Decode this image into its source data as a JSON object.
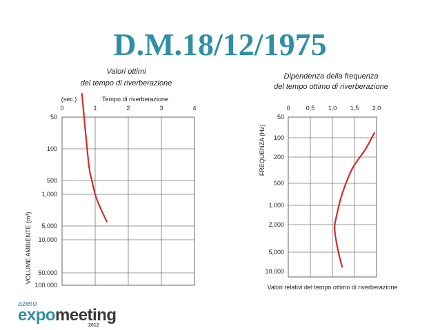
{
  "title": "D.M.18/12/1975",
  "logo": {
    "top": "azero",
    "expo": "expo",
    "meeting": "meeting",
    "year": "2012"
  },
  "chart_data": [
    {
      "type": "line",
      "title": "Valori ottimi",
      "subtitle": "del tempo di riverberazione",
      "xlabel": "Tempo di riverberazione",
      "xunit": "(sec.)",
      "ylabel": "VOLUME AMBIENTE (m³)",
      "x_ticks": [
        "0",
        "1",
        "2",
        "3",
        "4"
      ],
      "y_ticks": [
        {
          "label": "50",
          "value": 50
        },
        {
          "label": "100",
          "value": 100
        },
        {
          "label": "500",
          "value": 500
        },
        {
          "label": "1,000",
          "value": 1000
        },
        {
          "label": "5,000",
          "value": 5000
        },
        {
          "label": "10.000",
          "value": 10000
        },
        {
          "label": "50.000",
          "value": 50000
        },
        {
          "label": "100.000",
          "value": 100000
        }
      ],
      "xlim": [
        0,
        4
      ],
      "color": "#d62a2a",
      "series": [
        {
          "points": [
            [
              0.6,
              30
            ],
            [
              0.8,
              200
            ],
            [
              0.9,
              500
            ],
            [
              1.05,
              1300
            ],
            [
              1.35,
              4000
            ]
          ]
        }
      ]
    },
    {
      "type": "line",
      "title": "Dipendenza della frequenza",
      "subtitle": "del tempo ottimo di riverberazione",
      "xlabel": "Valori relativi del tempo ottimo di riverberazione",
      "ylabel": "FREQUENZA (Hz)",
      "x_ticks": [
        "0",
        "0,5",
        "1,0",
        "1,5",
        "2,0"
      ],
      "y_ticks": [
        {
          "label": "50",
          "value": 50
        },
        {
          "label": "100",
          "value": 100
        },
        {
          "label": "200",
          "value": 200
        },
        {
          "label": "500",
          "value": 500
        },
        {
          "label": "1.000",
          "value": 1000
        },
        {
          "label": "2,000",
          "value": 2000
        },
        {
          "label": "5,000",
          "value": 5000
        },
        {
          "label": "10.000",
          "value": 10000
        }
      ],
      "xlim": [
        0,
        2
      ],
      "color": "#d62a2a",
      "series": [
        {
          "points": [
            [
              1.95,
              85
            ],
            [
              1.75,
              150
            ],
            [
              1.45,
              300
            ],
            [
              1.22,
              700
            ],
            [
              1.1,
              1400
            ],
            [
              1.05,
              2300
            ],
            [
              1.12,
              4500
            ],
            [
              1.22,
              8500
            ]
          ]
        }
      ]
    }
  ]
}
